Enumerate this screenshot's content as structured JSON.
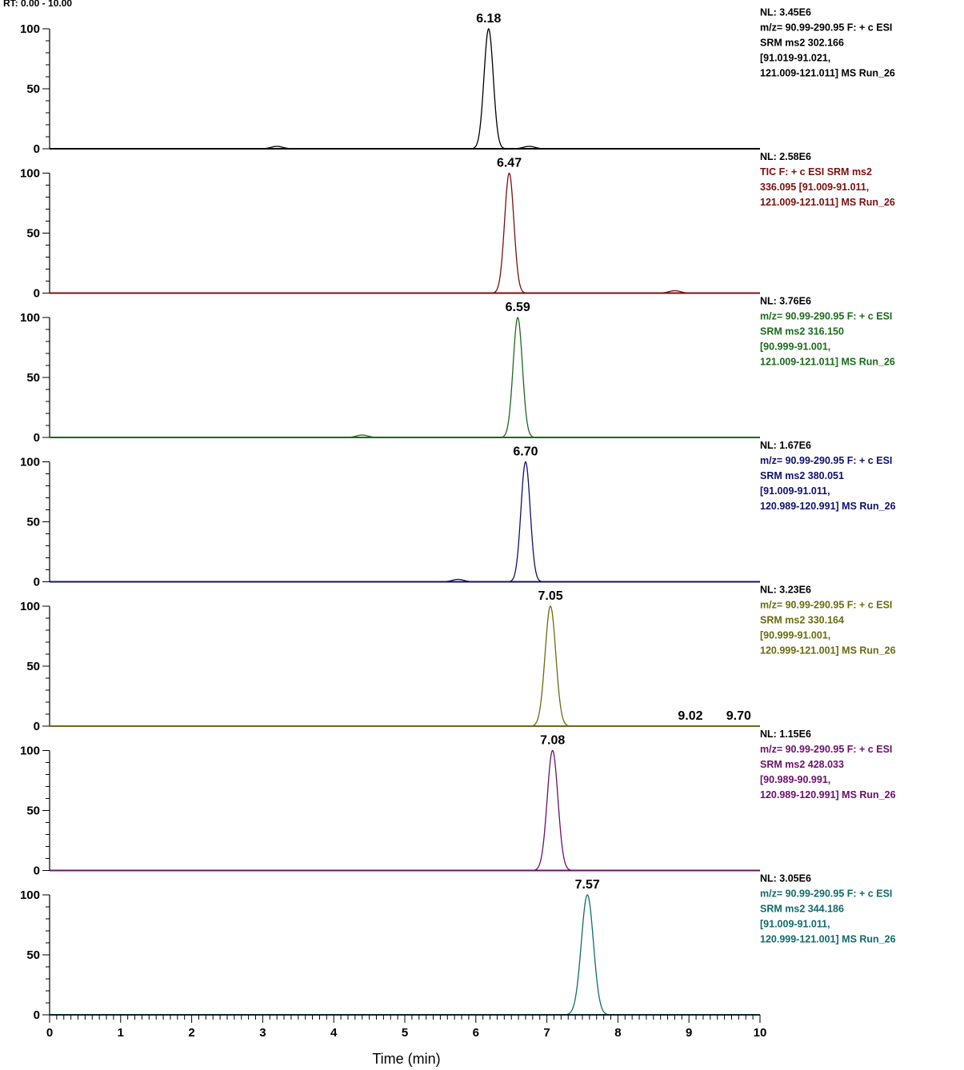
{
  "chart_data": {
    "type": "line",
    "corner_label": "RT: 0.00 - 10.00",
    "xlabel": "Time (min)",
    "xlim": [
      0,
      10
    ],
    "x_ticks": [
      "0",
      "1",
      "2",
      "3",
      "4",
      "5",
      "6",
      "7",
      "8",
      "9",
      "10"
    ],
    "y_ticks": [
      "0",
      "50",
      "100"
    ],
    "ylim": [
      0,
      100
    ],
    "panels": [
      {
        "color": "#000000",
        "peak_label": "6.18",
        "peak_rt": 6.18,
        "peak_height": 100,
        "peak_sigma": 0.065,
        "minor_peaks": [
          [
            3.2,
            2,
            0.08
          ],
          [
            6.75,
            2,
            0.08
          ]
        ],
        "extra_labels": [],
        "info_lines": [
          "NL: 3.45E6",
          "m/z= 90.99-290.95 F: + c ESI",
          "SRM ms2 302.166",
          "[91.019-91.021,",
          "121.009-121.011]  MS Run_26"
        ]
      },
      {
        "color": "#7a1010",
        "peak_label": "6.47",
        "peak_rt": 6.47,
        "peak_height": 100,
        "peak_sigma": 0.065,
        "minor_peaks": [
          [
            8.8,
            2,
            0.08
          ]
        ],
        "extra_labels": [],
        "info_lines": [
          "NL: 2.58E6",
          "TIC F: + c ESI SRM ms2",
          "336.095 [91.009-91.011,",
          "121.009-121.011]  MS Run_26"
        ]
      },
      {
        "color": "#1b6b1b",
        "peak_label": "6.59",
        "peak_rt": 6.59,
        "peak_height": 100,
        "peak_sigma": 0.065,
        "minor_peaks": [
          [
            4.4,
            2,
            0.08
          ]
        ],
        "extra_labels": [],
        "info_lines": [
          "NL: 3.76E6",
          "m/z= 90.99-290.95 F: + c ESI",
          "SRM ms2 316.150",
          "[90.999-91.001,",
          "121.009-121.011]  MS Run_26"
        ]
      },
      {
        "color": "#10106e",
        "peak_label": "6.70",
        "peak_rt": 6.7,
        "peak_height": 100,
        "peak_sigma": 0.065,
        "minor_peaks": [
          [
            5.75,
            2,
            0.08
          ]
        ],
        "extra_labels": [],
        "info_lines": [
          "NL: 1.67E6",
          "m/z= 90.99-290.95 F: + c ESI",
          "SRM ms2 380.051",
          "[91.009-91.011,",
          "120.989-120.991]  MS Run_26"
        ]
      },
      {
        "color": "#6b6b10",
        "peak_label": "7.05",
        "peak_rt": 7.05,
        "peak_height": 100,
        "peak_sigma": 0.075,
        "minor_peaks": [],
        "extra_labels": [
          {
            "text": "9.02",
            "x": 9.02
          },
          {
            "text": "9.70",
            "x": 9.7
          }
        ],
        "info_lines": [
          "NL: 3.23E6",
          "m/z= 90.99-290.95 F: + c ESI",
          "SRM ms2 330.164",
          "[90.999-91.001,",
          "120.999-121.001]  MS Run_26"
        ]
      },
      {
        "color": "#6b106b",
        "peak_label": "7.08",
        "peak_rt": 7.08,
        "peak_height": 100,
        "peak_sigma": 0.075,
        "minor_peaks": [],
        "extra_labels": [],
        "info_lines": [
          "NL: 1.15E6",
          "m/z= 90.99-290.95 F: + c ESI",
          "SRM ms2 428.033",
          "[90.989-90.991,",
          "120.989-120.991]  MS Run_26"
        ]
      },
      {
        "color": "#106b6b",
        "peak_label": "7.57",
        "peak_rt": 7.57,
        "peak_height": 100,
        "peak_sigma": 0.085,
        "minor_peaks": [],
        "extra_labels": [],
        "info_lines": [
          "NL: 3.05E6",
          "m/z= 90.99-290.95 F: + c ESI",
          "SRM ms2 344.186",
          "[91.009-91.011,",
          "120.999-121.001]  MS Run_26"
        ]
      }
    ]
  }
}
